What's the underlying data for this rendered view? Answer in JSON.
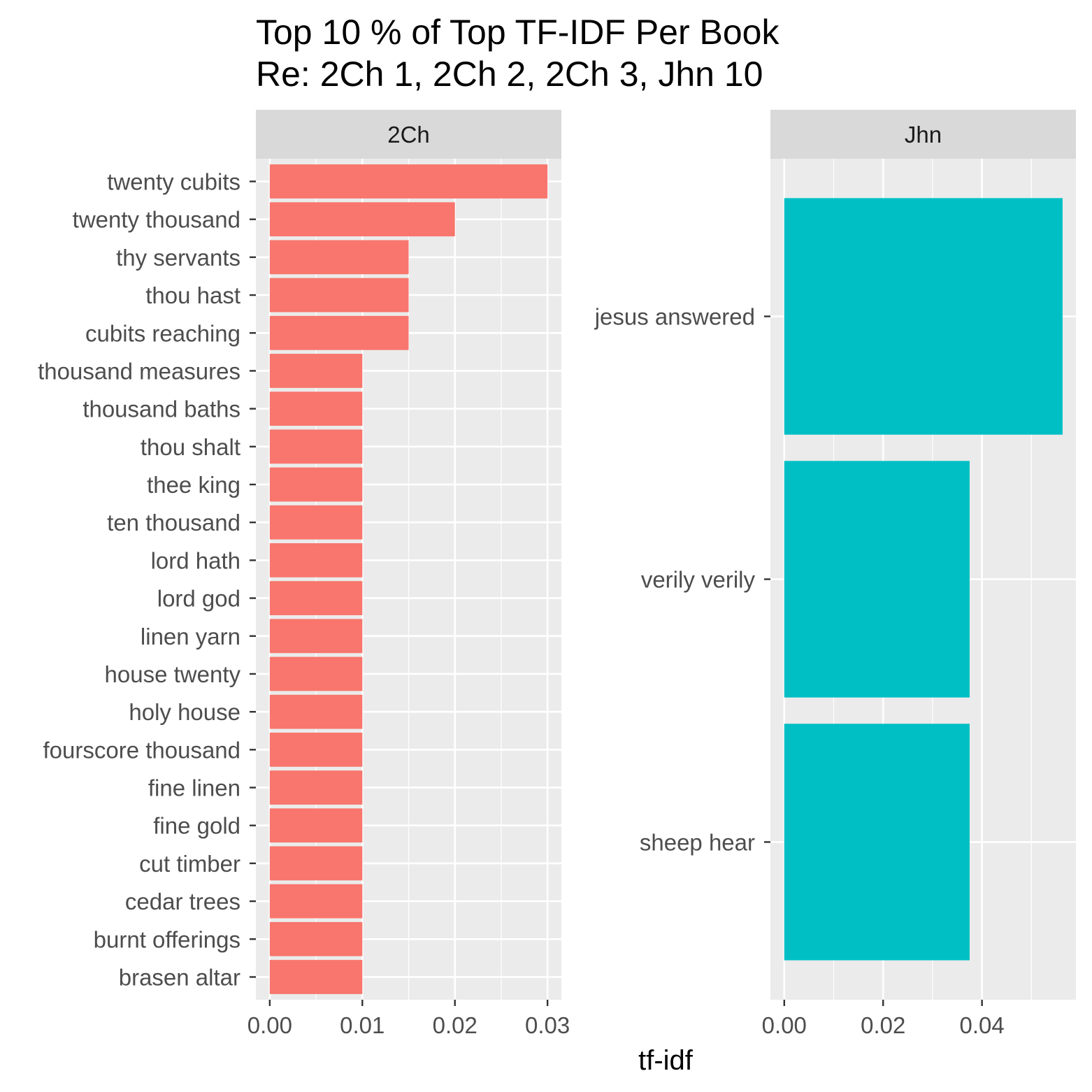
{
  "chart_data": {
    "type": "bar",
    "orientation": "horizontal",
    "title": "Top 10 % of Top TF-IDF Per Book",
    "subtitle": "Re: 2Ch 1, 2Ch 2, 2Ch 3, Jhn 10",
    "xlabel": "tf-idf",
    "ylabel": "",
    "grid": true,
    "legend": "none",
    "facets": [
      {
        "name": "2Ch",
        "color": "#F8766D",
        "xlim": [
          -0.0015,
          0.0315
        ],
        "xticks": [
          0.0,
          0.01,
          0.02,
          0.03
        ],
        "xtick_labels": [
          "0.00",
          "0.01",
          "0.02",
          "0.03"
        ],
        "categories": [
          "twenty cubits",
          "twenty thousand",
          "thy servants",
          "thou hast",
          "cubits reaching",
          "thousand measures",
          "thousand baths",
          "thou shalt",
          "thee king",
          "ten thousand",
          "lord hath",
          "lord god",
          "linen yarn",
          "house twenty",
          "holy house",
          "fourscore thousand",
          "fine linen",
          "fine gold",
          "cut timber",
          "cedar trees",
          "burnt offerings",
          "brasen altar"
        ],
        "values": [
          0.03,
          0.02,
          0.015,
          0.015,
          0.015,
          0.01,
          0.01,
          0.01,
          0.01,
          0.01,
          0.01,
          0.01,
          0.01,
          0.01,
          0.01,
          0.01,
          0.01,
          0.01,
          0.01,
          0.01,
          0.01,
          0.01
        ]
      },
      {
        "name": "Jhn",
        "color": "#00BFC4",
        "xlim": [
          -0.0028,
          0.059
        ],
        "xticks": [
          0.0,
          0.02,
          0.04
        ],
        "xtick_labels": [
          "0.00",
          "0.02",
          "0.04"
        ],
        "categories": [
          "jesus answered",
          "verily verily",
          "sheep hear"
        ],
        "values": [
          0.0563,
          0.0375,
          0.0375
        ]
      }
    ]
  }
}
